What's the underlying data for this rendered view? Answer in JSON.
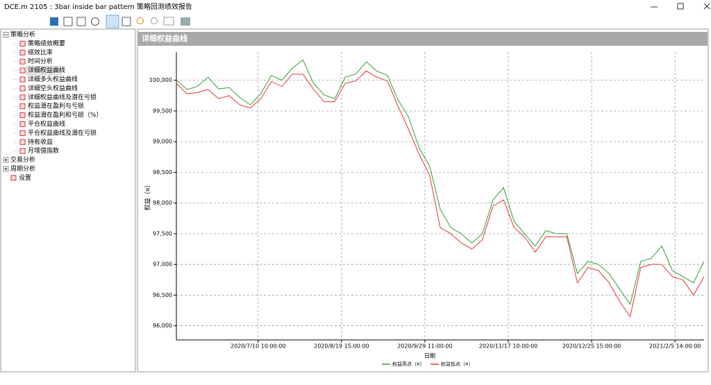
{
  "window": {
    "title": "DCE.m 2105 : 3bar inside bar pattern 策略回测绩效报告"
  },
  "tree": [
    {
      "label": "策略分析",
      "children": [
        "策略绩效概要",
        "绩效比率",
        "时间分析",
        "详细权益曲线",
        "详细多头权益曲线",
        "详细空头权益曲线",
        "详细权益曲线及潜在亏损",
        "权益潜在盈利与亏损",
        "权益潜在盈利和亏损（%）",
        "平仓权益曲线",
        "平仓权益曲线及潜在亏损",
        "持有收益",
        "月增值指数"
      ]
    },
    {
      "label": "交易分析",
      "children": []
    },
    {
      "label": "周期分析",
      "children": []
    },
    {
      "label": "设置",
      "children": []
    }
  ],
  "panel": {
    "title": "详细权益曲线"
  },
  "chart_data": {
    "type": "line",
    "xlabel": "日期",
    "ylabel": "权益（¤）",
    "x": [
      0,
      2,
      4,
      6,
      8,
      10,
      12,
      14,
      16,
      18,
      20,
      22,
      24,
      26,
      28,
      30,
      32,
      34,
      36,
      38,
      40,
      42,
      44,
      46,
      48,
      50,
      52,
      54,
      56,
      58,
      60,
      62,
      64,
      66,
      68,
      70,
      72,
      74,
      76,
      78,
      80,
      82,
      84,
      86,
      88,
      90,
      92,
      94,
      96,
      98,
      100
    ],
    "series": [
      {
        "name": "权益高点（¤）",
        "color": "#2ca02c",
        "values": [
          100000,
          99850,
          99900,
          100050,
          99860,
          99880,
          99720,
          99600,
          99780,
          100080,
          100000,
          100200,
          100330,
          99950,
          99760,
          99700,
          100050,
          100100,
          100300,
          100150,
          100080,
          99680,
          99400,
          98900,
          98600,
          97900,
          97600,
          97500,
          97350,
          97500,
          98050,
          98250,
          97700,
          97500,
          97300,
          97550,
          97500,
          97500,
          96850,
          97050,
          97000,
          96850,
          96600,
          96350,
          97050,
          97100,
          97300,
          96900,
          96800,
          96700,
          97050
        ]
      },
      {
        "name": "权益低点（¤）",
        "color": "#e3342f",
        "values": [
          99950,
          99780,
          99800,
          99850,
          99700,
          99750,
          99600,
          99550,
          99700,
          99980,
          99900,
          100100,
          100100,
          99850,
          99650,
          99650,
          99950,
          99990,
          100150,
          100050,
          99990,
          99580,
          99200,
          98800,
          98450,
          97600,
          97500,
          97350,
          97250,
          97400,
          97950,
          98050,
          97600,
          97450,
          97200,
          97450,
          97450,
          97450,
          96700,
          96950,
          96900,
          96700,
          96400,
          96150,
          96950,
          97000,
          97000,
          96800,
          96750,
          96500,
          96800
        ]
      }
    ],
    "xlim": [
      0,
      100
    ],
    "xticks": [
      {
        "value": 15.5,
        "label": "2020/7/10 10:00:00"
      },
      {
        "value": 31.3,
        "label": "2020/8/19 15:00:00"
      },
      {
        "value": 47.1,
        "label": "2020/9/29 11:00:00"
      },
      {
        "value": 62.9,
        "label": "2020/11/17 10:00:00"
      },
      {
        "value": 78.7,
        "label": "2020/12/25 15:00:00"
      },
      {
        "value": 94.5,
        "label": "2021/2/5 14:00:00"
      }
    ],
    "ylim": [
      95770,
      100460
    ],
    "yticks": [
      {
        "value": 96000,
        "label": "96,000"
      },
      {
        "value": 96500,
        "label": "96,500"
      },
      {
        "value": 97000,
        "label": "97,000"
      },
      {
        "value": 97500,
        "label": "97,500"
      },
      {
        "value": 98000,
        "label": "98,000"
      },
      {
        "value": 98500,
        "label": "98,500"
      },
      {
        "value": 99000,
        "label": "99,000"
      },
      {
        "value": 99500,
        "label": "99,500"
      },
      {
        "value": 100000,
        "label": "100,000"
      }
    ],
    "grid": true
  }
}
